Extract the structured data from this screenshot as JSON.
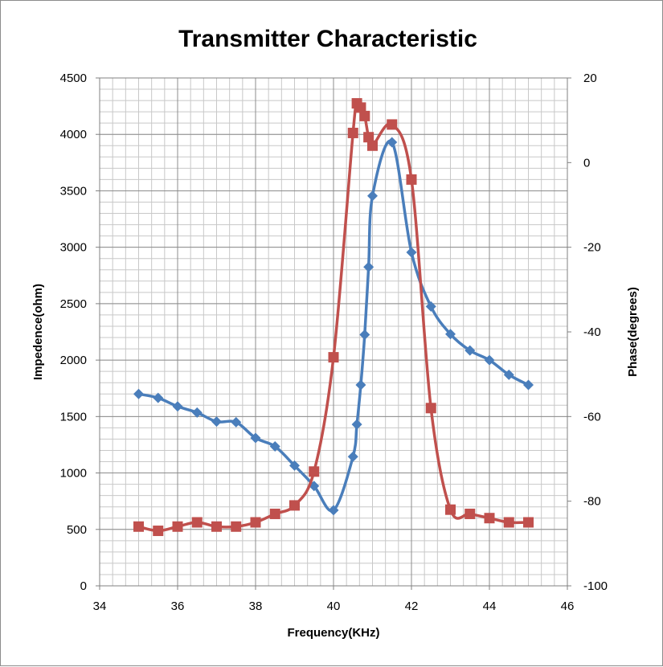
{
  "chart_data": {
    "type": "line",
    "title": "Transmitter Characteristic",
    "xlabel": "Frequency(KHz)",
    "ylabel_left": "Impedence(ohm)",
    "ylabel_right": "Phase(degrees)",
    "xlim": [
      34,
      46
    ],
    "ylim_left": [
      0,
      4500
    ],
    "ylim_right": [
      -100,
      20
    ],
    "x_ticks": [
      34,
      36,
      38,
      40,
      42,
      44,
      46
    ],
    "y_left_ticks": [
      0,
      500,
      1000,
      1500,
      2000,
      2500,
      3000,
      3500,
      4000,
      4500
    ],
    "y_right_ticks": [
      -100,
      -80,
      -60,
      -40,
      -20,
      0,
      20
    ],
    "grid": true,
    "series": [
      {
        "axis": "left",
        "color": "#4a7ebb",
        "marker": "diamond",
        "points": [
          [
            35,
            1700
          ],
          [
            35.5,
            1665
          ],
          [
            36,
            1590
          ],
          [
            36.5,
            1535
          ],
          [
            37,
            1455
          ],
          [
            37.5,
            1450
          ],
          [
            38,
            1310
          ],
          [
            38.5,
            1235
          ],
          [
            39,
            1065
          ],
          [
            39.5,
            885
          ],
          [
            40,
            670
          ],
          [
            40.5,
            1145
          ],
          [
            40.6,
            1430
          ],
          [
            40.7,
            1780
          ],
          [
            40.8,
            2225
          ],
          [
            40.9,
            2825
          ],
          [
            41,
            3455
          ],
          [
            41.5,
            3930
          ],
          [
            42,
            2955
          ],
          [
            42.5,
            2475
          ],
          [
            43,
            2230
          ],
          [
            43.5,
            2085
          ],
          [
            44,
            2000
          ],
          [
            44.5,
            1870
          ],
          [
            45,
            1780
          ]
        ]
      },
      {
        "axis": "right",
        "color": "#c0504d",
        "marker": "square",
        "points": [
          [
            35,
            -86
          ],
          [
            35.5,
            -87
          ],
          [
            36,
            -86
          ],
          [
            36.5,
            -85
          ],
          [
            37,
            -86
          ],
          [
            37.5,
            -86
          ],
          [
            38,
            -85
          ],
          [
            38.5,
            -83
          ],
          [
            39,
            -81
          ],
          [
            39.5,
            -73
          ],
          [
            40,
            -46
          ],
          [
            40.5,
            7
          ],
          [
            40.6,
            14
          ],
          [
            40.7,
            13
          ],
          [
            40.8,
            11
          ],
          [
            40.9,
            6
          ],
          [
            41,
            4
          ],
          [
            41.5,
            9
          ],
          [
            42,
            -4
          ],
          [
            42.5,
            -58
          ],
          [
            43,
            -82
          ],
          [
            43.5,
            -83
          ],
          [
            44,
            -84
          ],
          [
            44.5,
            -85
          ],
          [
            45,
            -85
          ]
        ]
      }
    ]
  }
}
